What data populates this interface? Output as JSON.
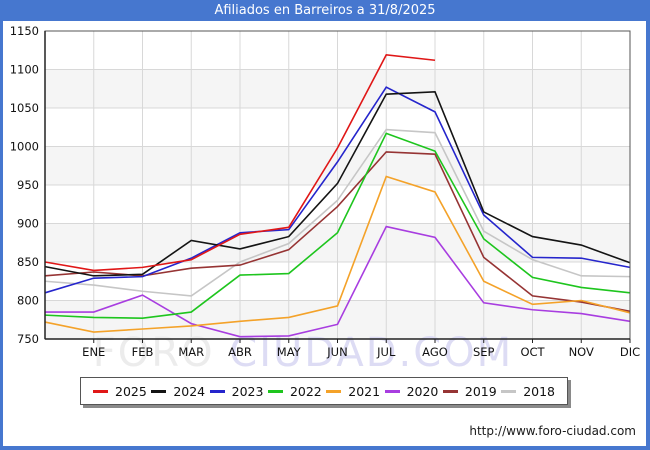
{
  "window": {
    "title": "Afiliados en Barreiros a 31/8/2025",
    "frame_color": "#4677cf",
    "url_text": "http://www.foro-ciudad.com"
  },
  "watermark": {
    "part1": "FORO",
    "part2": "CIUDAD.COM",
    "color1": "#ececec",
    "color2": "#dddcf4"
  },
  "chart_data": {
    "type": "line",
    "title": "Afiliados en Barreiros a 31/8/2025",
    "xlabel": "",
    "ylabel": "",
    "ylim": [
      750,
      1150
    ],
    "y_ticks": [
      1150,
      1100,
      1050,
      1000,
      950,
      900,
      850,
      800,
      750
    ],
    "x_tick_labels": [
      "ENE",
      "FEB",
      "MAR",
      "ABR",
      "MAY",
      "JUN",
      "JUL",
      "AGO",
      "SEP",
      "OCT",
      "NOV",
      "DIC"
    ],
    "grid": true,
    "band_colors": [
      "#ffffff",
      "#f5f5f5"
    ],
    "grid_color": "#d8d8d8",
    "axis_color": "#333333",
    "legend_position": "bottom",
    "note": "first value of each series sits on the left axis, one step before ENE; 2025 ends at AGO",
    "series": [
      {
        "name": "2018",
        "color": "#c6c6c6",
        "values": [
          825,
          820,
          812,
          806,
          850,
          874,
          930,
          1022,
          1018,
          890,
          853,
          832,
          831
        ]
      },
      {
        "name": "2019",
        "color": "#963434",
        "values": [
          832,
          837,
          832,
          842,
          846,
          866,
          922,
          993,
          990,
          856,
          806,
          798,
          786
        ]
      },
      {
        "name": "2020",
        "color": "#a83de0",
        "values": [
          785,
          785,
          807,
          770,
          753,
          754,
          769,
          896,
          882,
          797,
          788,
          783,
          773
        ]
      },
      {
        "name": "2021",
        "color": "#f4a229",
        "values": [
          772,
          759,
          763,
          767,
          773,
          778,
          793,
          961,
          941,
          825,
          795,
          800,
          784
        ]
      },
      {
        "name": "2022",
        "color": "#1ec51e",
        "values": [
          781,
          778,
          777,
          785,
          833,
          835,
          888,
          1017,
          994,
          880,
          830,
          817,
          810
        ]
      },
      {
        "name": "2023",
        "color": "#2525cc",
        "values": [
          810,
          829,
          831,
          855,
          888,
          892,
          980,
          1077,
          1045,
          911,
          856,
          855,
          843
        ]
      },
      {
        "name": "2024",
        "color": "#141414",
        "values": [
          844,
          832,
          834,
          878,
          867,
          883,
          952,
          1068,
          1071,
          915,
          883,
          872,
          849
        ]
      },
      {
        "name": "2025",
        "color": "#e01717",
        "values": [
          850,
          839,
          843,
          853,
          886,
          895,
          998,
          1119,
          1112
        ]
      }
    ],
    "legend_order": [
      "2025",
      "2024",
      "2023",
      "2022",
      "2021",
      "2020",
      "2019",
      "2018"
    ]
  }
}
